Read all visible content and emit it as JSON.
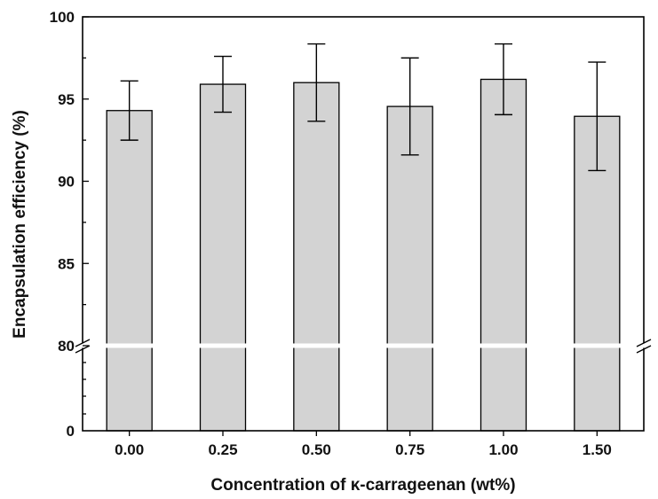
{
  "chart_data": {
    "type": "bar",
    "title": "",
    "xlabel": "Concentration of κ-carrageenan (wt%)",
    "ylabel": "Encapsulation efficiency (%)",
    "categories": [
      "0.00",
      "0.25",
      "0.50",
      "0.75",
      "1.00",
      "1.50"
    ],
    "values": [
      94.3,
      95.9,
      96.0,
      94.55,
      96.2,
      93.95
    ],
    "errors": [
      1.8,
      1.7,
      2.35,
      2.95,
      2.15,
      3.3
    ],
    "ylim": [
      0,
      100
    ],
    "y_axis_break": [
      0,
      80
    ],
    "y_ticks_lower": [
      "0"
    ],
    "y_ticks_upper": [
      "80",
      "85",
      "90",
      "95",
      "100"
    ],
    "bar_color": "#d3d3d3",
    "grid": false,
    "legend": "none"
  }
}
